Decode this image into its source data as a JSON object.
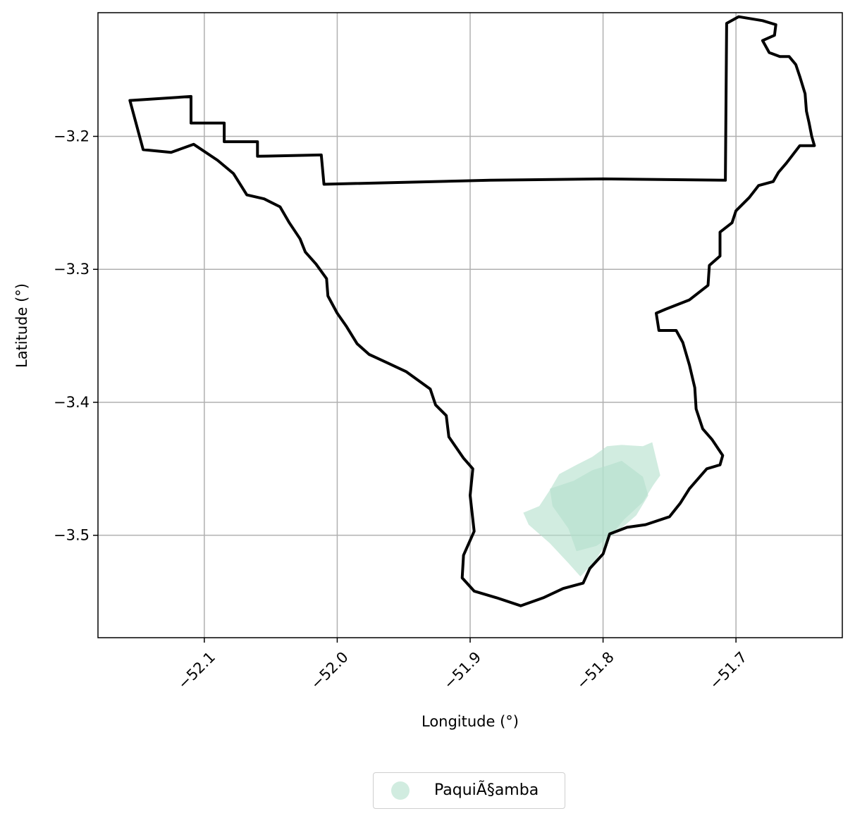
{
  "chart_data": {
    "type": "map",
    "xlabel": "Longitude (°)",
    "ylabel": "Latitude (°)",
    "xlim": [
      -52.18,
      -51.62
    ],
    "ylim": [
      -3.577,
      -3.107
    ],
    "x_ticks": [
      -52.1,
      -52.0,
      -51.9,
      -51.8,
      -51.7
    ],
    "x_tick_labels": [
      "−52.1",
      "−52.0",
      "−51.9",
      "−51.8",
      "−51.7"
    ],
    "y_ticks": [
      -3.2,
      -3.3,
      -3.4,
      -3.5
    ],
    "y_tick_labels": [
      "−3.2",
      "−3.3",
      "−3.4",
      "−3.5"
    ],
    "grid": true,
    "legend_placement": "bottom-center, below axes",
    "boundary": {
      "color": "#000000",
      "coordinates": [
        [
          -52.156,
          -3.173
        ],
        [
          -52.11,
          -3.17
        ],
        [
          -52.11,
          -3.19
        ],
        [
          -52.085,
          -3.19
        ],
        [
          -52.085,
          -3.204
        ],
        [
          -52.06,
          -3.204
        ],
        [
          -52.06,
          -3.215
        ],
        [
          -52.012,
          -3.214
        ],
        [
          -52.01,
          -3.236
        ],
        [
          -51.885,
          -3.233
        ],
        [
          -51.8,
          -3.232
        ],
        [
          -51.708,
          -3.233
        ],
        [
          -51.707,
          -3.115
        ],
        [
          -51.698,
          -3.11
        ],
        [
          -51.68,
          -3.113
        ],
        [
          -51.67,
          -3.116
        ],
        [
          -51.671,
          -3.124
        ],
        [
          -51.68,
          -3.128
        ],
        [
          -51.675,
          -3.137
        ],
        [
          -51.667,
          -3.14
        ],
        [
          -51.66,
          -3.14
        ],
        [
          -51.655,
          -3.146
        ],
        [
          -51.652,
          -3.155
        ],
        [
          -51.648,
          -3.168
        ],
        [
          -51.647,
          -3.181
        ],
        [
          -51.645,
          -3.19
        ],
        [
          -51.643,
          -3.2
        ],
        [
          -51.641,
          -3.207
        ],
        [
          -51.652,
          -3.207
        ],
        [
          -51.662,
          -3.22
        ],
        [
          -51.668,
          -3.227
        ],
        [
          -51.672,
          -3.234
        ],
        [
          -51.683,
          -3.237
        ],
        [
          -51.69,
          -3.246
        ],
        [
          -51.7,
          -3.256
        ],
        [
          -51.703,
          -3.265
        ],
        [
          -51.712,
          -3.272
        ],
        [
          -51.712,
          -3.29
        ],
        [
          -51.72,
          -3.297
        ],
        [
          -51.721,
          -3.312
        ],
        [
          -51.735,
          -3.323
        ],
        [
          -51.753,
          -3.33
        ],
        [
          -51.76,
          -3.333
        ],
        [
          -51.758,
          -3.346
        ],
        [
          -51.745,
          -3.346
        ],
        [
          -51.74,
          -3.355
        ],
        [
          -51.735,
          -3.372
        ],
        [
          -51.731,
          -3.389
        ],
        [
          -51.73,
          -3.405
        ],
        [
          -51.725,
          -3.42
        ],
        [
          -51.718,
          -3.428
        ],
        [
          -51.71,
          -3.44
        ],
        [
          -51.712,
          -3.447
        ],
        [
          -51.722,
          -3.45
        ],
        [
          -51.735,
          -3.465
        ],
        [
          -51.742,
          -3.476
        ],
        [
          -51.75,
          -3.486
        ],
        [
          -51.768,
          -3.492
        ],
        [
          -51.782,
          -3.494
        ],
        [
          -51.795,
          -3.499
        ],
        [
          -51.8,
          -3.514
        ],
        [
          -51.81,
          -3.525
        ],
        [
          -51.815,
          -3.536
        ],
        [
          -51.83,
          -3.54
        ],
        [
          -51.845,
          -3.547
        ],
        [
          -51.862,
          -3.553
        ],
        [
          -51.88,
          -3.547
        ],
        [
          -51.897,
          -3.542
        ],
        [
          -51.906,
          -3.532
        ],
        [
          -51.905,
          -3.515
        ],
        [
          -51.897,
          -3.497
        ],
        [
          -51.9,
          -3.47
        ],
        [
          -51.898,
          -3.45
        ],
        [
          -51.905,
          -3.442
        ],
        [
          -51.916,
          -3.426
        ],
        [
          -51.918,
          -3.41
        ],
        [
          -51.926,
          -3.402
        ],
        [
          -51.93,
          -3.39
        ],
        [
          -51.948,
          -3.377
        ],
        [
          -51.963,
          -3.37
        ],
        [
          -51.976,
          -3.364
        ],
        [
          -51.985,
          -3.356
        ],
        [
          -51.993,
          -3.343
        ],
        [
          -52.0,
          -3.333
        ],
        [
          -52.007,
          -3.32
        ],
        [
          -52.008,
          -3.307
        ],
        [
          -52.016,
          -3.296
        ],
        [
          -52.024,
          -3.287
        ],
        [
          -52.028,
          -3.277
        ],
        [
          -52.036,
          -3.265
        ],
        [
          -52.043,
          -3.253
        ],
        [
          -52.055,
          -3.247
        ],
        [
          -52.068,
          -3.244
        ],
        [
          -52.078,
          -3.228
        ],
        [
          -52.09,
          -3.218
        ],
        [
          -52.108,
          -3.206
        ],
        [
          -52.125,
          -3.212
        ],
        [
          -52.146,
          -3.21
        ],
        [
          -52.156,
          -3.173
        ]
      ]
    },
    "regions": [
      {
        "name": "PaquiÃ§amba",
        "color": "#b3dfcb",
        "opacity": 0.6,
        "polygons": [
          [
            [
              -51.848,
              -3.478
            ],
            [
              -51.84,
              -3.466
            ],
            [
              -51.833,
              -3.454
            ],
            [
              -51.82,
              -3.447
            ],
            [
              -51.808,
              -3.441
            ],
            [
              -51.797,
              -3.433
            ],
            [
              -51.786,
              -3.432
            ],
            [
              -51.77,
              -3.433
            ],
            [
              -51.763,
              -3.43
            ],
            [
              -51.757,
              -3.455
            ],
            [
              -51.762,
              -3.462
            ],
            [
              -51.77,
              -3.475
            ],
            [
              -51.784,
              -3.488
            ],
            [
              -51.795,
              -3.501
            ],
            [
              -51.805,
              -3.518
            ],
            [
              -51.817,
              -3.531
            ],
            [
              -51.826,
              -3.521
            ],
            [
              -51.84,
              -3.506
            ],
            [
              -51.856,
              -3.492
            ],
            [
              -51.86,
              -3.483
            ]
          ],
          [
            [
              -51.826,
              -3.495
            ],
            [
              -51.838,
              -3.478
            ],
            [
              -51.84,
              -3.465
            ],
            [
              -51.822,
              -3.459
            ],
            [
              -51.808,
              -3.451
            ],
            [
              -51.795,
              -3.447
            ],
            [
              -51.786,
              -3.444
            ],
            [
              -51.77,
              -3.456
            ],
            [
              -51.766,
              -3.47
            ],
            [
              -51.775,
              -3.485
            ],
            [
              -51.79,
              -3.498
            ],
            [
              -51.805,
              -3.508
            ],
            [
              -51.82,
              -3.512
            ]
          ]
        ]
      }
    ]
  },
  "legend": {
    "items": [
      {
        "label": "PaquiÃ§amba",
        "color": "#b3dfcb"
      }
    ]
  }
}
